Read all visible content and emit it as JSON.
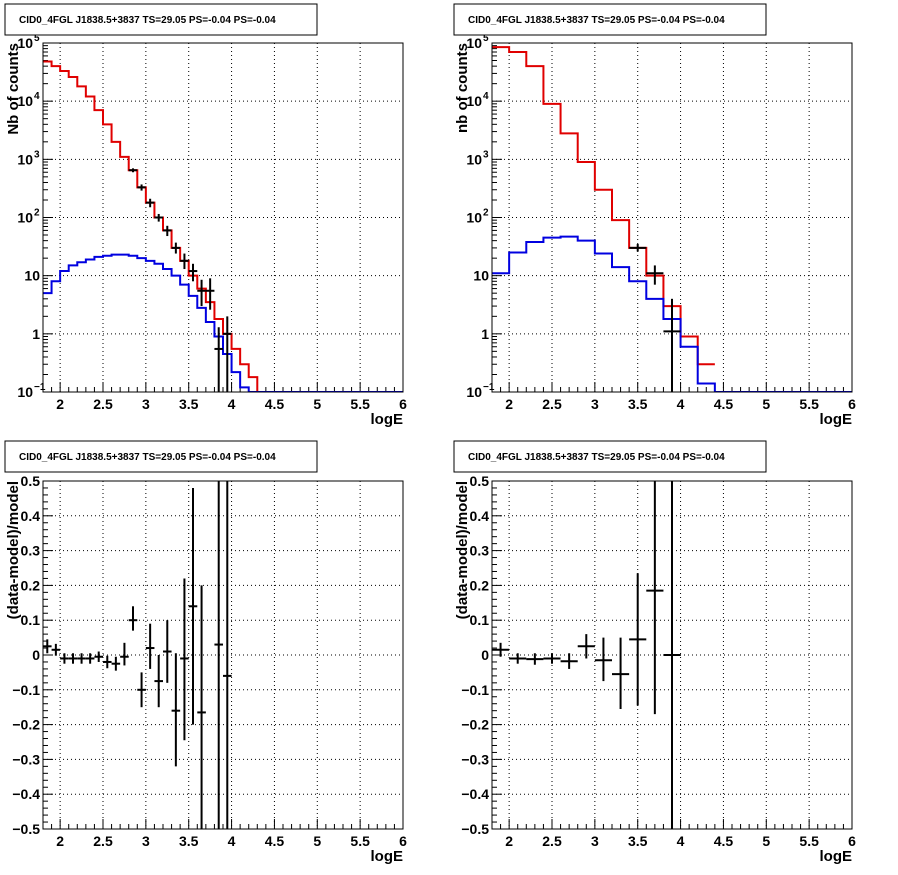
{
  "chart_data": [
    {
      "type": "line",
      "panel": "top-left",
      "title": "CID0_4FGL J1838.5+3837 TS=29.05 PS=-0.04 PS=-0.04",
      "xlabel": "logE",
      "ylabel": "Nb of counts",
      "xlim": [
        1.8,
        6.0
      ],
      "ylim": [
        0.1,
        100000
      ],
      "yscale": "log",
      "grid": true,
      "x_ticks": [
        "2",
        "2.5",
        "3",
        "3.5",
        "4",
        "4.5",
        "5",
        "5.5",
        "6"
      ],
      "y_ticks": [
        {
          "v": 0.1,
          "base": "10",
          "exp": "−1"
        },
        {
          "v": 1,
          "base": "1",
          "exp": ""
        },
        {
          "v": 10,
          "base": "10",
          "exp": ""
        },
        {
          "v": 100,
          "base": "10",
          "exp": "2"
        },
        {
          "v": 1000,
          "base": "10",
          "exp": "3"
        },
        {
          "v": 10000,
          "base": "10",
          "exp": "4"
        },
        {
          "v": 100000,
          "base": "10",
          "exp": "5"
        }
      ],
      "series": [
        {
          "color": "#e00000",
          "kind": "step",
          "edges": [
            1.8,
            1.9,
            2.0,
            2.1,
            2.2,
            2.3,
            2.4,
            2.5,
            2.6,
            2.7,
            2.8,
            2.9,
            3.0,
            3.1,
            3.2,
            3.3,
            3.4,
            3.5,
            3.6,
            3.7,
            3.8,
            3.9,
            4.0,
            4.1,
            4.2,
            4.3,
            4.4
          ],
          "values": [
            48000,
            40000,
            33000,
            26000,
            18000,
            12000,
            7000,
            4000,
            2000,
            1100,
            650,
            330,
            180,
            100,
            60,
            30,
            18,
            10,
            6,
            3.5,
            1.8,
            1.0,
            0.55,
            0.3,
            0.18,
            0.05
          ]
        },
        {
          "color": "#0000e0",
          "kind": "step",
          "edges": [
            1.8,
            1.9,
            2.0,
            2.1,
            2.2,
            2.3,
            2.4,
            2.5,
            2.6,
            2.7,
            2.8,
            2.9,
            3.0,
            3.1,
            3.2,
            3.3,
            3.4,
            3.5,
            3.6,
            3.7,
            3.8,
            3.9,
            4.0,
            4.1,
            4.2,
            4.3,
            4.4,
            6.0
          ],
          "values": [
            5,
            8,
            12,
            15,
            17,
            19,
            21,
            22,
            23,
            23,
            22,
            20,
            18,
            16,
            13,
            10,
            7,
            4.5,
            2.8,
            1.6,
            0.9,
            0.45,
            0.22,
            0.12,
            0.1,
            0.1,
            0.1
          ]
        },
        {
          "color": "#000000",
          "kind": "points",
          "points": [
            {
              "x": 2.85,
              "y": 650,
              "lo": 600,
              "hi": 700,
              "dx": 0.05
            },
            {
              "x": 2.95,
              "y": 330,
              "lo": 290,
              "hi": 370,
              "dx": 0.05
            },
            {
              "x": 3.05,
              "y": 180,
              "lo": 150,
              "hi": 210,
              "dx": 0.05
            },
            {
              "x": 3.15,
              "y": 100,
              "lo": 85,
              "hi": 115,
              "dx": 0.05
            },
            {
              "x": 3.25,
              "y": 60,
              "lo": 48,
              "hi": 72,
              "dx": 0.05
            },
            {
              "x": 3.35,
              "y": 30,
              "lo": 24,
              "hi": 37,
              "dx": 0.05
            },
            {
              "x": 3.45,
              "y": 18,
              "lo": 13,
              "hi": 24,
              "dx": 0.05
            },
            {
              "x": 3.55,
              "y": 12,
              "lo": 8,
              "hi": 16,
              "dx": 0.05
            },
            {
              "x": 3.65,
              "y": 5.5,
              "lo": 3,
              "hi": 8.5,
              "dx": 0.05
            },
            {
              "x": 3.75,
              "y": 5.5,
              "lo": 2.6,
              "hi": 9,
              "dx": 0.05
            },
            {
              "x": 3.85,
              "y": 0.55,
              "lo": 0.1,
              "hi": 1.3,
              "dx": 0.05
            },
            {
              "x": 3.95,
              "y": 1.0,
              "lo": 0.1,
              "hi": 2.0,
              "dx": 0.05
            }
          ]
        }
      ]
    },
    {
      "type": "line",
      "panel": "top-right",
      "title": "CID0_4FGL J1838.5+3837 TS=29.05 PS=-0.04 PS=-0.04",
      "xlabel": "logE",
      "ylabel": "nb of counts",
      "xlim": [
        1.8,
        6.0
      ],
      "ylim": [
        0.1,
        100000
      ],
      "yscale": "log",
      "grid": true,
      "x_ticks": [
        "2",
        "2.5",
        "3",
        "3.5",
        "4",
        "4.5",
        "5",
        "5.5",
        "6"
      ],
      "y_ticks": [
        {
          "v": 0.1,
          "base": "10",
          "exp": "−1"
        },
        {
          "v": 1,
          "base": "1",
          "exp": ""
        },
        {
          "v": 10,
          "base": "10",
          "exp": ""
        },
        {
          "v": 100,
          "base": "10",
          "exp": "2"
        },
        {
          "v": 1000,
          "base": "10",
          "exp": "3"
        },
        {
          "v": 10000,
          "base": "10",
          "exp": "4"
        },
        {
          "v": 100000,
          "base": "10",
          "exp": "5"
        }
      ],
      "series": [
        {
          "color": "#e00000",
          "kind": "step",
          "edges": [
            1.8,
            2.0,
            2.2,
            2.4,
            2.6,
            2.8,
            3.0,
            3.2,
            3.4,
            3.6,
            3.8,
            4.0,
            4.2,
            4.4
          ],
          "values": [
            85000,
            70000,
            40000,
            9000,
            2800,
            900,
            300,
            90,
            30,
            10,
            3,
            0.9,
            0.3
          ]
        },
        {
          "color": "#0000e0",
          "kind": "step",
          "edges": [
            1.8,
            2.0,
            2.2,
            2.4,
            2.6,
            2.8,
            3.0,
            3.2,
            3.4,
            3.6,
            3.8,
            4.0,
            4.2,
            4.4,
            6.0
          ],
          "values": [
            11,
            25,
            38,
            45,
            47,
            40,
            24,
            14,
            8,
            4,
            1.8,
            0.6,
            0.14,
            0.1
          ]
        },
        {
          "color": "#000000",
          "kind": "points",
          "points": [
            {
              "x": 3.5,
              "y": 30,
              "lo": 26,
              "hi": 35,
              "dx": 0.1
            },
            {
              "x": 3.7,
              "y": 11,
              "lo": 7,
              "hi": 15,
              "dx": 0.1
            },
            {
              "x": 3.9,
              "y": 1.1,
              "lo": 0.1,
              "hi": 4,
              "dx": 0.1
            }
          ]
        }
      ]
    },
    {
      "type": "scatter",
      "panel": "bottom-left",
      "title": "CID0_4FGL J1838.5+3837 TS=29.05 PS=-0.04 PS=-0.04",
      "xlabel": "logE",
      "ylabel": "(data-model)/model",
      "xlim": [
        1.8,
        6.0
      ],
      "ylim": [
        -0.5,
        0.5
      ],
      "yscale": "linear",
      "grid": true,
      "x_ticks": [
        "2",
        "2.5",
        "3",
        "3.5",
        "4",
        "4.5",
        "5",
        "5.5",
        "6"
      ],
      "y_ticks": [
        {
          "v": -0.5,
          "base": "−0.5",
          "exp": ""
        },
        {
          "v": -0.4,
          "base": "−0.4",
          "exp": ""
        },
        {
          "v": -0.3,
          "base": "−0.3",
          "exp": ""
        },
        {
          "v": -0.2,
          "base": "−0.2",
          "exp": ""
        },
        {
          "v": -0.1,
          "base": "−0.1",
          "exp": ""
        },
        {
          "v": 0,
          "base": "0",
          "exp": ""
        },
        {
          "v": 0.1,
          "base": "0.1",
          "exp": ""
        },
        {
          "v": 0.2,
          "base": "0.2",
          "exp": ""
        },
        {
          "v": 0.3,
          "base": "0.3",
          "exp": ""
        },
        {
          "v": 0.4,
          "base": "0.4",
          "exp": ""
        },
        {
          "v": 0.5,
          "base": "0.5",
          "exp": ""
        }
      ],
      "series": [
        {
          "color": "#000000",
          "kind": "points",
          "points": [
            {
              "x": 1.85,
              "y": 0.025,
              "lo": 0.005,
              "hi": 0.045,
              "dx": 0.05
            },
            {
              "x": 1.95,
              "y": 0.015,
              "lo": -0.002,
              "hi": 0.032,
              "dx": 0.05
            },
            {
              "x": 2.05,
              "y": -0.01,
              "lo": -0.025,
              "hi": 0.005,
              "dx": 0.05
            },
            {
              "x": 2.15,
              "y": -0.01,
              "lo": -0.025,
              "hi": 0.005,
              "dx": 0.05
            },
            {
              "x": 2.25,
              "y": -0.01,
              "lo": -0.025,
              "hi": 0.005,
              "dx": 0.05
            },
            {
              "x": 2.35,
              "y": -0.01,
              "lo": -0.025,
              "hi": 0.005,
              "dx": 0.05
            },
            {
              "x": 2.45,
              "y": -0.005,
              "lo": -0.02,
              "hi": 0.01,
              "dx": 0.05
            },
            {
              "x": 2.55,
              "y": -0.02,
              "lo": -0.038,
              "hi": -0.002,
              "dx": 0.05
            },
            {
              "x": 2.65,
              "y": -0.025,
              "lo": -0.045,
              "hi": -0.005,
              "dx": 0.05
            },
            {
              "x": 2.75,
              "y": -0.005,
              "lo": -0.03,
              "hi": 0.035,
              "dx": 0.05
            },
            {
              "x": 2.85,
              "y": 0.1,
              "lo": 0.07,
              "hi": 0.14,
              "dx": 0.05
            },
            {
              "x": 2.95,
              "y": -0.1,
              "lo": -0.15,
              "hi": -0.05,
              "dx": 0.05
            },
            {
              "x": 3.05,
              "y": 0.02,
              "lo": -0.04,
              "hi": 0.09,
              "dx": 0.05
            },
            {
              "x": 3.15,
              "y": -0.075,
              "lo": -0.15,
              "hi": 0.0,
              "dx": 0.05
            },
            {
              "x": 3.25,
              "y": 0.01,
              "lo": -0.08,
              "hi": 0.1,
              "dx": 0.05
            },
            {
              "x": 3.35,
              "y": -0.16,
              "lo": -0.32,
              "hi": 0.005,
              "dx": 0.05
            },
            {
              "x": 3.45,
              "y": -0.01,
              "lo": -0.245,
              "hi": 0.22,
              "dx": 0.05
            },
            {
              "x": 3.55,
              "y": 0.14,
              "lo": -0.2,
              "hi": 0.48,
              "dx": 0.05
            },
            {
              "x": 3.65,
              "y": -0.165,
              "lo": -0.5,
              "hi": 0.2,
              "dx": 0.05
            },
            {
              "x": 3.85,
              "y": 0.03,
              "lo": -0.5,
              "hi": 0.5,
              "dx": 0.05
            },
            {
              "x": 3.95,
              "y": -0.06,
              "lo": -0.5,
              "hi": 0.5,
              "dx": 0.05
            }
          ]
        }
      ]
    },
    {
      "type": "scatter",
      "panel": "bottom-right",
      "title": "CID0_4FGL J1838.5+3837 TS=29.05 PS=-0.04 PS=-0.04",
      "xlabel": "logE",
      "ylabel": "(data-model)/model",
      "xlim": [
        1.8,
        6.0
      ],
      "ylim": [
        -0.5,
        0.5
      ],
      "yscale": "linear",
      "grid": true,
      "x_ticks": [
        "2",
        "2.5",
        "3",
        "3.5",
        "4",
        "4.5",
        "5",
        "5.5",
        "6"
      ],
      "y_ticks": [
        {
          "v": -0.5,
          "base": "−0.5",
          "exp": ""
        },
        {
          "v": -0.4,
          "base": "−0.4",
          "exp": ""
        },
        {
          "v": -0.3,
          "base": "−0.3",
          "exp": ""
        },
        {
          "v": -0.2,
          "base": "−0.2",
          "exp": ""
        },
        {
          "v": -0.1,
          "base": "−0.1",
          "exp": ""
        },
        {
          "v": 0,
          "base": "0",
          "exp": ""
        },
        {
          "v": 0.1,
          "base": "0.1",
          "exp": ""
        },
        {
          "v": 0.2,
          "base": "0.2",
          "exp": ""
        },
        {
          "v": 0.3,
          "base": "0.3",
          "exp": ""
        },
        {
          "v": 0.4,
          "base": "0.4",
          "exp": ""
        },
        {
          "v": 0.5,
          "base": "0.5",
          "exp": ""
        }
      ],
      "series": [
        {
          "color": "#000000",
          "kind": "points",
          "points": [
            {
              "x": 1.9,
              "y": 0.015,
              "lo": -0.005,
              "hi": 0.035,
              "dx": 0.1
            },
            {
              "x": 2.1,
              "y": -0.01,
              "lo": -0.025,
              "hi": 0.005,
              "dx": 0.1
            },
            {
              "x": 2.3,
              "y": -0.012,
              "lo": -0.028,
              "hi": 0.005,
              "dx": 0.1
            },
            {
              "x": 2.5,
              "y": -0.01,
              "lo": -0.025,
              "hi": 0.005,
              "dx": 0.1
            },
            {
              "x": 2.7,
              "y": -0.018,
              "lo": -0.04,
              "hi": 0.005,
              "dx": 0.1
            },
            {
              "x": 2.9,
              "y": 0.025,
              "lo": -0.01,
              "hi": 0.06,
              "dx": 0.1
            },
            {
              "x": 3.1,
              "y": -0.015,
              "lo": -0.075,
              "hi": 0.05,
              "dx": 0.1
            },
            {
              "x": 3.3,
              "y": -0.055,
              "lo": -0.155,
              "hi": 0.05,
              "dx": 0.1
            },
            {
              "x": 3.5,
              "y": 0.045,
              "lo": -0.145,
              "hi": 0.235,
              "dx": 0.1
            },
            {
              "x": 3.7,
              "y": 0.185,
              "lo": -0.17,
              "hi": 0.5,
              "dx": 0.1
            },
            {
              "x": 3.9,
              "y": 0.0,
              "lo": -0.5,
              "hi": 0.5,
              "dx": 0.1
            }
          ]
        }
      ]
    }
  ]
}
